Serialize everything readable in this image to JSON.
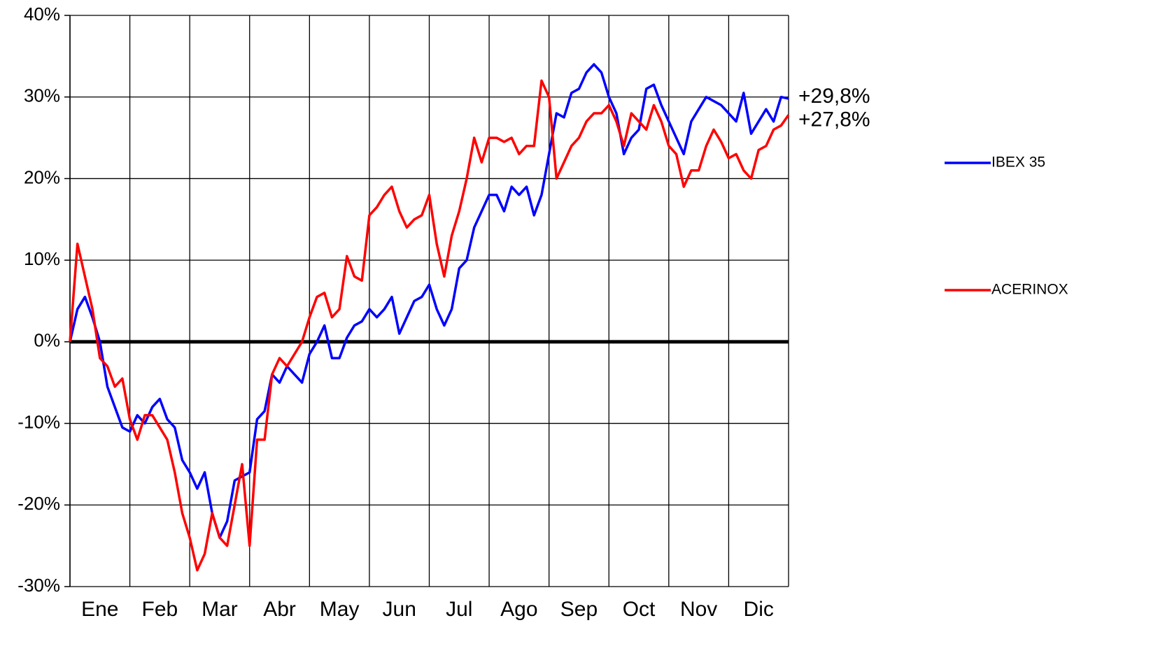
{
  "chart_data": {
    "type": "line",
    "categories": [
      null,
      null,
      null,
      null,
      "Ene",
      null,
      null,
      null,
      null,
      null,
      null,
      null,
      "Feb",
      null,
      null,
      null,
      null,
      null,
      null,
      null,
      "Mar",
      null,
      null,
      null,
      null,
      null,
      null,
      null,
      "Abr",
      null,
      null,
      null,
      null,
      null,
      null,
      null,
      "May",
      null,
      null,
      null,
      null,
      null,
      null,
      null,
      "Jun",
      null,
      null,
      null,
      null,
      null,
      null,
      null,
      "Jul",
      null,
      null,
      null,
      null,
      null,
      null,
      null,
      "Ago",
      null,
      null,
      null,
      null,
      null,
      null,
      null,
      "Sep",
      null,
      null,
      null,
      null,
      null,
      null,
      null,
      "Oct",
      null,
      null,
      null,
      null,
      null,
      null,
      null,
      "Nov",
      null,
      null,
      null,
      null,
      null,
      null,
      null,
      "Dic",
      null,
      null,
      null,
      null
    ],
    "series": [
      {
        "name": "IBEX 35",
        "color": "#0000ff",
        "end_label": "+29,8%",
        "values": [
          0,
          4,
          5.5,
          3,
          0,
          -5.5,
          -8,
          -10.5,
          -11,
          -9,
          -10,
          -8,
          -7,
          -9.5,
          -10.5,
          -14.5,
          -16,
          -18,
          -16,
          -21,
          -24,
          -22,
          -17,
          -16.5,
          -16,
          -9.5,
          -8.5,
          -4,
          -5,
          -3,
          -4,
          -5,
          -1.5,
          0,
          2,
          -2,
          -2,
          0.5,
          2,
          2.5,
          4,
          3,
          4,
          5.5,
          1,
          3,
          5,
          5.5,
          7,
          4,
          2,
          4,
          9,
          10,
          14,
          16,
          18,
          18,
          16,
          19,
          18,
          19,
          15.5,
          18,
          23,
          28,
          27.5,
          30.5,
          31,
          33,
          34,
          33,
          30,
          28,
          23,
          25,
          26,
          31,
          31.5,
          29,
          27,
          25,
          23,
          27,
          28.5,
          30,
          29.5,
          29,
          28,
          27,
          30.5,
          25.5,
          27,
          28.5,
          27,
          30,
          29.8
        ]
      },
      {
        "name": "ACERINOX",
        "color": "#ff0000",
        "end_label": "+27,8%",
        "values": [
          0,
          12,
          8,
          4,
          -2,
          -3,
          -5.5,
          -4.5,
          -9.5,
          -12,
          -9,
          -9,
          -10.5,
          -12,
          -16,
          -21,
          -24,
          -28,
          -26,
          -21,
          -24,
          -25,
          -20,
          -15,
          -25,
          -12,
          -12,
          -4,
          -2,
          -3,
          -1.5,
          0,
          3,
          5.5,
          6,
          3,
          4,
          10.5,
          8,
          7.5,
          15.5,
          16.5,
          18,
          19,
          16,
          14,
          15,
          15.5,
          18,
          12,
          8,
          13,
          16,
          20,
          25,
          22,
          25,
          25,
          24.5,
          25,
          23,
          24,
          24,
          32,
          30,
          20,
          22,
          24,
          25,
          27,
          28,
          28,
          29,
          27,
          24,
          28,
          27,
          26,
          29,
          27,
          24,
          23,
          19,
          21,
          21,
          24,
          26,
          24.5,
          22.5,
          23,
          21,
          20,
          23.5,
          24,
          26,
          26.5,
          27.8
        ]
      }
    ],
    "ylim": [
      -30,
      40
    ],
    "yticks": [
      {
        "value": -30,
        "label": "-30%"
      },
      {
        "value": -20,
        "label": "-20%"
      },
      {
        "value": -10,
        "label": "-10%"
      },
      {
        "value": 0,
        "label": "0%"
      },
      {
        "value": 10,
        "label": "10%"
      },
      {
        "value": 20,
        "label": "20%"
      },
      {
        "value": 30,
        "label": "30%"
      },
      {
        "value": 40,
        "label": "40%"
      }
    ],
    "grid": true,
    "legend": "right"
  }
}
